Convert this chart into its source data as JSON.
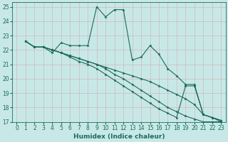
{
  "xlabel": "Humidex (Indice chaleur)",
  "bg_color": "#c8e8e8",
  "grid_color": "#aacccc",
  "line_color": "#1a6b5a",
  "xlim": [
    -0.5,
    23.5
  ],
  "ylim": [
    17,
    25.3
  ],
  "yticks": [
    17,
    18,
    19,
    20,
    21,
    22,
    23,
    24,
    25
  ],
  "xticks": [
    0,
    1,
    2,
    3,
    4,
    5,
    6,
    7,
    8,
    9,
    10,
    11,
    12,
    13,
    14,
    15,
    16,
    17,
    18,
    19,
    20,
    21,
    22,
    23
  ],
  "lines": [
    {
      "x": [
        1,
        2,
        3,
        4,
        5,
        6,
        7,
        8,
        9,
        10,
        11,
        12,
        13,
        14,
        15,
        16,
        17,
        18,
        19,
        20,
        21,
        22,
        23
      ],
      "y": [
        22.6,
        22.2,
        22.2,
        21.8,
        22.5,
        22.3,
        22.3,
        22.3,
        25.0,
        24.3,
        24.8,
        24.8,
        21.3,
        21.5,
        22.3,
        21.7,
        20.7,
        20.2,
        19.6,
        19.6,
        17.5,
        17.3,
        17.1
      ]
    },
    {
      "x": [
        1,
        2,
        3,
        4,
        5,
        6,
        7,
        8,
        9,
        10,
        11,
        12,
        13,
        14,
        15,
        16,
        17,
        18,
        19,
        20,
        21,
        22,
        23
      ],
      "y": [
        22.6,
        22.2,
        22.2,
        22.0,
        21.8,
        21.6,
        21.4,
        21.2,
        21.0,
        20.8,
        20.6,
        20.4,
        20.2,
        20.0,
        19.8,
        19.5,
        19.2,
        18.9,
        18.6,
        18.2,
        17.5,
        17.3,
        17.1
      ]
    },
    {
      "x": [
        1,
        2,
        3,
        4,
        5,
        6,
        7,
        8,
        9,
        10,
        11,
        12,
        13,
        14,
        15,
        16,
        17,
        18,
        19,
        20,
        21,
        22,
        23
      ],
      "y": [
        22.6,
        22.2,
        22.2,
        22.0,
        21.8,
        21.6,
        21.4,
        21.2,
        21.0,
        20.7,
        20.3,
        20.0,
        19.6,
        19.2,
        18.8,
        18.4,
        18.0,
        17.7,
        17.4,
        17.2,
        17.0,
        17.0,
        17.0
      ]
    },
    {
      "x": [
        1,
        2,
        3,
        4,
        5,
        6,
        7,
        8,
        9,
        10,
        11,
        12,
        13,
        14,
        15,
        16,
        17,
        18,
        19,
        20,
        21,
        22,
        23
      ],
      "y": [
        22.6,
        22.2,
        22.2,
        22.0,
        21.8,
        21.5,
        21.2,
        21.0,
        20.7,
        20.3,
        19.9,
        19.5,
        19.1,
        18.7,
        18.3,
        17.9,
        17.6,
        17.3,
        19.5,
        19.5,
        17.5,
        17.3,
        17.0
      ]
    }
  ]
}
